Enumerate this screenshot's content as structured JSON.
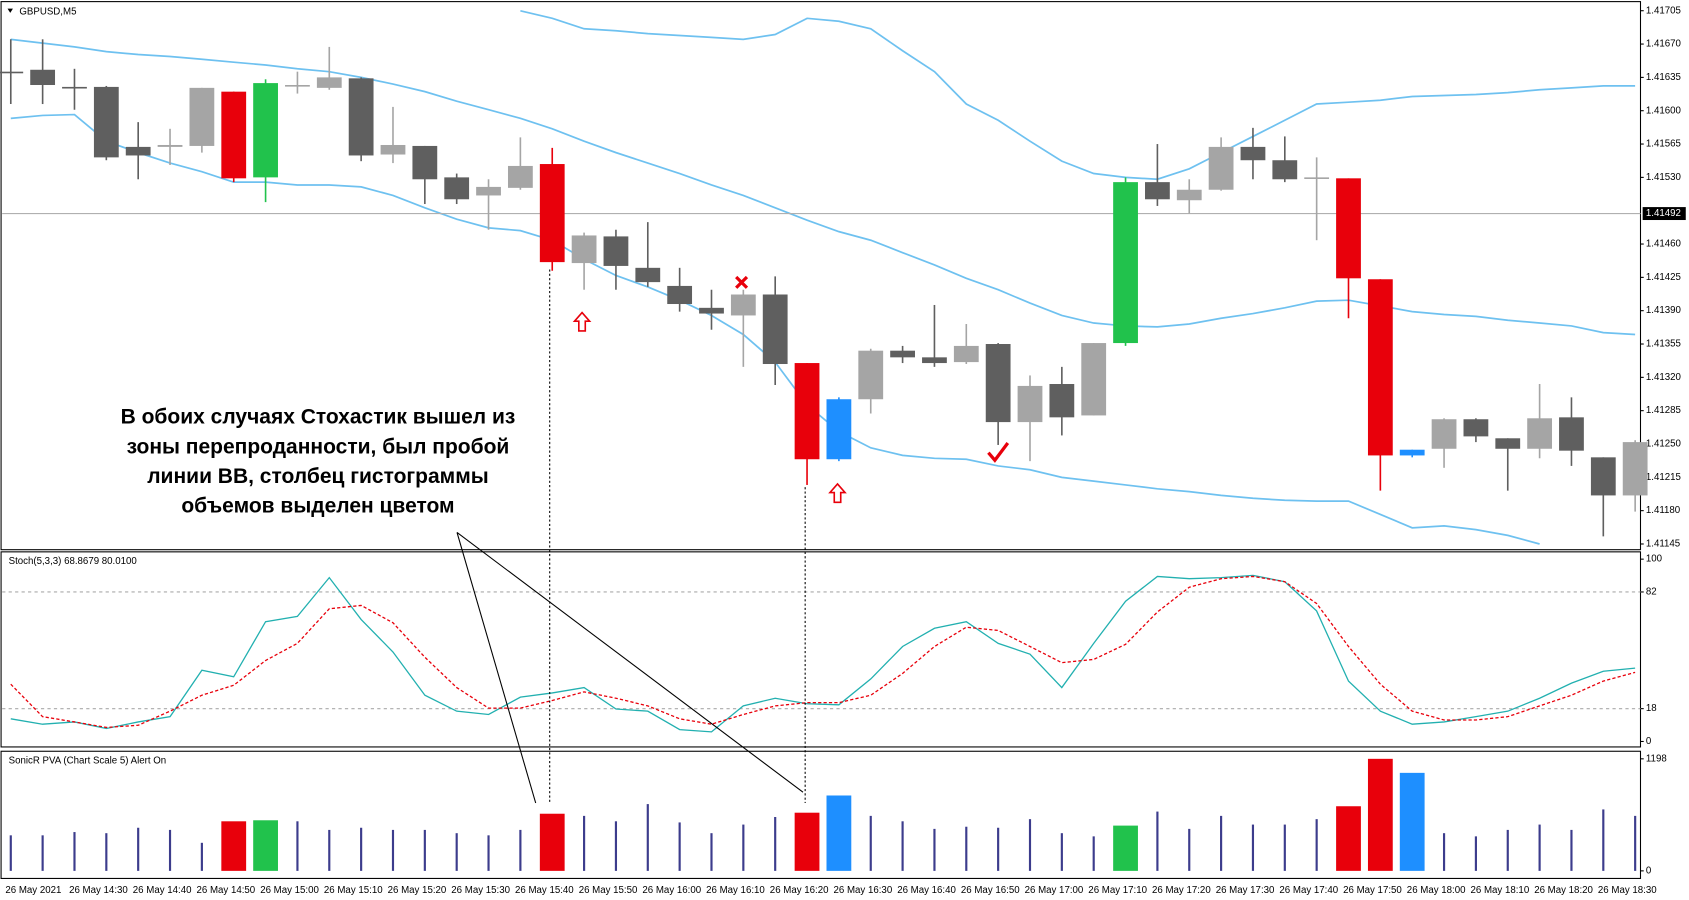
{
  "chart_data": [
    {
      "type": "candlestick",
      "title": "GBPUSD,M5",
      "categories": [
        "26 May 2021",
        null,
        "26 May 14:30",
        null,
        "26 May 14:40",
        null,
        "26 May 14:50",
        null,
        "26 May 15:00",
        null,
        "26 May 15:10",
        null,
        "26 May 15:20",
        null,
        "26 May 15:30",
        null,
        "26 May 15:40",
        null,
        "26 May 15:50",
        null,
        "26 May 16:00",
        null,
        "26 May 16:10",
        null,
        "26 May 16:20",
        null,
        "26 May 16:30",
        null,
        "26 May 16:40",
        null,
        "26 May 16:50",
        null,
        "26 May 17:00",
        null,
        "26 May 17:10",
        null,
        "26 May 17:20",
        null,
        "26 May 17:30",
        null,
        "26 May 17:40",
        null,
        "26 May 17:50",
        null,
        "26 May 18:00",
        null,
        "26 May 18:10",
        null,
        "26 May 18:20",
        null,
        "26 May 18:30",
        null
      ],
      "open": [
        1.41641,
        1.41643,
        1.41625,
        1.41625,
        1.41562,
        1.41562,
        1.41563,
        1.4162,
        1.4153,
        1.41626,
        1.41624,
        1.41634,
        1.41554,
        1.41563,
        1.4153,
        1.41511,
        1.41519,
        1.41544,
        1.4144,
        1.41468,
        1.41435,
        1.41416,
        1.41393,
        1.41385,
        1.41407,
        1.41335,
        1.41234,
        1.41297,
        1.41348,
        1.41341,
        1.41336,
        1.41355,
        1.41273,
        1.41313,
        1.4128,
        1.41356,
        1.41525,
        1.41506,
        1.41517,
        1.41562,
        1.41548,
        1.41529,
        1.41529,
        1.41423,
        1.41238,
        1.41245,
        1.41276,
        1.41256,
        1.41245,
        1.41278,
        1.41236,
        1.41196
      ],
      "high": [
        1.41675,
        1.41675,
        1.41644,
        1.41626,
        1.41588,
        1.41581,
        1.41624,
        1.4162,
        1.41633,
        1.41641,
        1.41667,
        1.41635,
        1.41604,
        1.41563,
        1.41534,
        1.41528,
        1.41572,
        1.41561,
        1.41472,
        1.41475,
        1.41483,
        1.41435,
        1.41412,
        1.41412,
        1.41426,
        1.41335,
        1.41299,
        1.4135,
        1.41353,
        1.41396,
        1.41376,
        1.41356,
        1.41322,
        1.41331,
        1.41356,
        1.4153,
        1.41565,
        1.41528,
        1.41572,
        1.41582,
        1.41573,
        1.41551,
        1.41529,
        1.41423,
        1.41244,
        1.41277,
        1.41277,
        1.41256,
        1.41313,
        1.41299,
        1.41236,
        1.41254
      ],
      "low": [
        1.41607,
        1.41607,
        1.41601,
        1.41548,
        1.41528,
        1.41543,
        1.41556,
        1.41525,
        1.41504,
        1.41618,
        1.41622,
        1.41547,
        1.41545,
        1.41502,
        1.41502,
        1.41475,
        1.41517,
        1.41432,
        1.41412,
        1.41412,
        1.41415,
        1.41389,
        1.4137,
        1.41331,
        1.41312,
        1.41207,
        1.41232,
        1.41282,
        1.41335,
        1.41331,
        1.41334,
        1.41249,
        1.41232,
        1.41259,
        1.4128,
        1.41353,
        1.415,
        1.41492,
        1.41516,
        1.41528,
        1.41525,
        1.41464,
        1.41382,
        1.41201,
        1.41236,
        1.41225,
        1.41252,
        1.41201,
        1.41235,
        1.41227,
        1.41153,
        1.41179
      ],
      "close": [
        1.4164,
        1.41627,
        1.41625,
        1.41551,
        1.41553,
        1.41564,
        1.41624,
        1.41529,
        1.41629,
        1.41627,
        1.41635,
        1.41553,
        1.41564,
        1.41528,
        1.41507,
        1.4152,
        1.41542,
        1.41441,
        1.41469,
        1.41437,
        1.4142,
        1.41397,
        1.41387,
        1.41407,
        1.41334,
        1.41234,
        1.41297,
        1.41348,
        1.41341,
        1.41335,
        1.41353,
        1.41273,
        1.41311,
        1.41278,
        1.41356,
        1.41525,
        1.41507,
        1.41517,
        1.41562,
        1.41548,
        1.41528,
        1.4153,
        1.41424,
        1.41238,
        1.41244,
        1.41276,
        1.41258,
        1.41245,
        1.41277,
        1.41243,
        1.41196,
        1.41252
      ],
      "colors": [
        "#5f5f5f",
        "#5f5f5f",
        "#5f5f5f",
        "#5f5f5f",
        "#5f5f5f",
        "#a5a5a5",
        "#a5a5a5",
        "#e8000b",
        "#21c24c",
        "#a5a5a5",
        "#a5a5a5",
        "#5f5f5f",
        "#a5a5a5",
        "#5f5f5f",
        "#5f5f5f",
        "#a5a5a5",
        "#a5a5a5",
        "#e8000b",
        "#a5a5a5",
        "#5f5f5f",
        "#5f5f5f",
        "#5f5f5f",
        "#5f5f5f",
        "#a5a5a5",
        "#5f5f5f",
        "#e8000b",
        "#1e8fff",
        "#a5a5a5",
        "#5f5f5f",
        "#5f5f5f",
        "#a5a5a5",
        "#5f5f5f",
        "#a5a5a5",
        "#5f5f5f",
        "#a5a5a5",
        "#21c24c",
        "#5f5f5f",
        "#a5a5a5",
        "#a5a5a5",
        "#5f5f5f",
        "#5f5f5f",
        "#a5a5a5",
        "#e8000b",
        "#e8000b",
        "#1e8fff",
        "#a5a5a5",
        "#5f5f5f",
        "#5f5f5f",
        "#a5a5a5",
        "#5f5f5f",
        "#5f5f5f",
        "#a5a5a5"
      ],
      "bands": [
        {
          "color": "#6ec1f0",
          "values": [
            null,
            null,
            null,
            null,
            null,
            null,
            null,
            null,
            null,
            null,
            null,
            null,
            null,
            null,
            null,
            null,
            1.41705,
            1.41697,
            1.41686,
            1.41684,
            1.41681,
            1.41679,
            1.41677,
            1.41675,
            1.4168,
            1.41697,
            1.41694,
            1.41686,
            1.41663,
            1.41641,
            1.41607,
            1.4159,
            1.41568,
            1.41547,
            1.41534,
            1.4153,
            1.41528,
            1.41539,
            1.41556,
            1.41573,
            1.4159,
            1.41607,
            1.41609,
            1.41611,
            1.41615,
            1.41616,
            1.41617,
            1.41619,
            1.41622,
            1.41624,
            1.41626,
            1.41626
          ]
        },
        {
          "color": "#6ec1f0",
          "values": [
            1.41675,
            1.41671,
            1.41667,
            1.41662,
            1.41659,
            1.41657,
            1.41654,
            1.41651,
            1.41648,
            1.41644,
            1.41641,
            1.41635,
            1.41628,
            1.4162,
            1.4161,
            1.41601,
            1.41592,
            1.41581,
            1.41568,
            1.41556,
            1.41545,
            1.41534,
            1.41522,
            1.41511,
            1.41498,
            1.41485,
            1.41473,
            1.41464,
            1.41451,
            1.41438,
            1.41424,
            1.41412,
            1.41398,
            1.41385,
            1.41377,
            1.41374,
            1.41373,
            1.41376,
            1.41382,
            1.41387,
            1.41393,
            1.414,
            1.41401,
            1.41395,
            1.41389,
            1.41386,
            1.41384,
            1.4138,
            1.41377,
            1.41374,
            1.41367,
            1.41365
          ]
        },
        {
          "color": "#6ec1f0",
          "values": [
            1.41592,
            1.41595,
            1.41596,
            1.41568,
            1.41556,
            1.41545,
            1.41536,
            1.41525,
            1.41525,
            1.41522,
            1.41522,
            1.4152,
            1.41511,
            1.41498,
            1.41486,
            1.41477,
            1.41474,
            1.41464,
            1.41444,
            1.41427,
            1.41415,
            1.41401,
            1.41385,
            1.41365,
            1.41336,
            1.41291,
            1.41263,
            1.41246,
            1.41238,
            1.41235,
            1.41234,
            1.41227,
            1.41223,
            1.41215,
            1.41211,
            1.41207,
            1.41203,
            1.412,
            1.41196,
            1.41193,
            1.41191,
            1.4119,
            1.4119,
            1.41176,
            1.41162,
            1.41164,
            1.4116,
            1.41154,
            1.41145,
            null,
            null,
            null
          ]
        }
      ],
      "current_price": {
        "value": 1.41492,
        "label": "1.41492"
      },
      "ylim": [
        1.41139,
        1.41714
      ],
      "yticks": [
        {
          "value": 1.41705,
          "label": "1.41705"
        },
        {
          "value": 1.4167,
          "label": "1.41670"
        },
        {
          "value": 1.41635,
          "label": "1.41635"
        },
        {
          "value": 1.416,
          "label": "1.41600"
        },
        {
          "value": 1.41565,
          "label": "1.41565"
        },
        {
          "value": 1.4153,
          "label": "1.41530"
        },
        {
          "value": 1.4146,
          "label": "1.41460"
        },
        {
          "value": 1.41425,
          "label": "1.41425"
        },
        {
          "value": 1.4139,
          "label": "1.41390"
        },
        {
          "value": 1.41355,
          "label": "1.41355"
        },
        {
          "value": 1.4132,
          "label": "1.41320"
        },
        {
          "value": 1.41285,
          "label": "1.41285"
        },
        {
          "value": 1.4125,
          "label": "1.41250"
        },
        {
          "value": 1.41215,
          "label": "1.41215"
        },
        {
          "value": 1.4118,
          "label": "1.41180"
        },
        {
          "value": 1.41145,
          "label": "1.41145"
        }
      ],
      "annotation": [
        "В обоих случаях Стохастик вышел из",
        "зоны перепроданности, был пробой",
        "линии ВВ, столбец гистограммы",
        "объемов выделен цветом"
      ]
    },
    {
      "type": "line",
      "title": "Stoch(5,3,3) 68.8679 80.0100",
      "series": [
        {
          "color": "#22b0b0",
          "dashed": false,
          "values": [
            12.4,
            9.5,
            10.7,
            7.1,
            10.7,
            13.6,
            39.1,
            35.5,
            65.7,
            68.6,
            89.9,
            66.9,
            49.1,
            25.4,
            16.6,
            14.8,
            24.3,
            26.6,
            29.6,
            17.8,
            16.6,
            6.5,
            5.3,
            19.5,
            23.7,
            20.7,
            20.1,
            34.3,
            52.1,
            62.1,
            65.7,
            53.8,
            47.9,
            29.6,
            53.8,
            76.9,
            90.5,
            89.3,
            89.9,
            91.1,
            87.6,
            71.6,
            33.1,
            16.6,
            9.5,
            10.7,
            13.6,
            16.6,
            23.7,
            32.0,
            38.5,
            40.2
          ]
        },
        {
          "color": "#e8000b",
          "dashed": true,
          "values": [
            31.4,
            13.6,
            10.7,
            7.7,
            8.9,
            16.6,
            25.4,
            30.8,
            44.4,
            53.8,
            72.8,
            74.6,
            65.1,
            46.2,
            29.6,
            18.3,
            18.3,
            22.5,
            27.2,
            23.7,
            19.5,
            12.4,
            9.5,
            14.8,
            19.5,
            21.3,
            21.3,
            25.4,
            37.3,
            52.1,
            62.7,
            60.9,
            52.1,
            43.2,
            45.0,
            53.3,
            71.0,
            84.6,
            89.3,
            90.5,
            87.6,
            75.7,
            52.1,
            31.4,
            16.6,
            11.8,
            11.8,
            13.6,
            19.5,
            25.4,
            33.1,
            37.9
          ]
        }
      ],
      "levels": [
        82,
        18
      ],
      "ylim": [
        -3,
        104
      ],
      "yticks": [
        100,
        82,
        18,
        0
      ]
    },
    {
      "type": "bar",
      "title": "SonicR PVA  (Chart Scale 5)  Alert On",
      "values": [
        380,
        380,
        415,
        403,
        461,
        438,
        300,
        530,
        541,
        530,
        438,
        461,
        438,
        438,
        403,
        380,
        438,
        611,
        588,
        530,
        714,
        518,
        403,
        495,
        576,
        622,
        806,
        588,
        530,
        449,
        472,
        461,
        553,
        403,
        369,
        484,
        634,
        449,
        588,
        495,
        495,
        553,
        691,
        1198,
        1048,
        403,
        369,
        438,
        495,
        438,
        657,
        588
      ],
      "color": "#3c3c8c",
      "colors": [
        null,
        null,
        null,
        null,
        null,
        null,
        null,
        "#e8000b",
        "#21c24c",
        null,
        null,
        null,
        null,
        null,
        null,
        null,
        null,
        "#e8000b",
        null,
        null,
        null,
        null,
        null,
        null,
        null,
        "#e8000b",
        "#1e8fff",
        null,
        null,
        null,
        null,
        null,
        null,
        null,
        null,
        "#21c24c",
        null,
        null,
        null,
        null,
        null,
        null,
        "#e8000b",
        "#e8000b",
        "#1e8fff",
        null,
        null,
        null,
        null,
        null,
        null,
        null
      ],
      "ylim": [
        -81,
        1279
      ],
      "yticks": [
        1198,
        0
      ]
    }
  ]
}
